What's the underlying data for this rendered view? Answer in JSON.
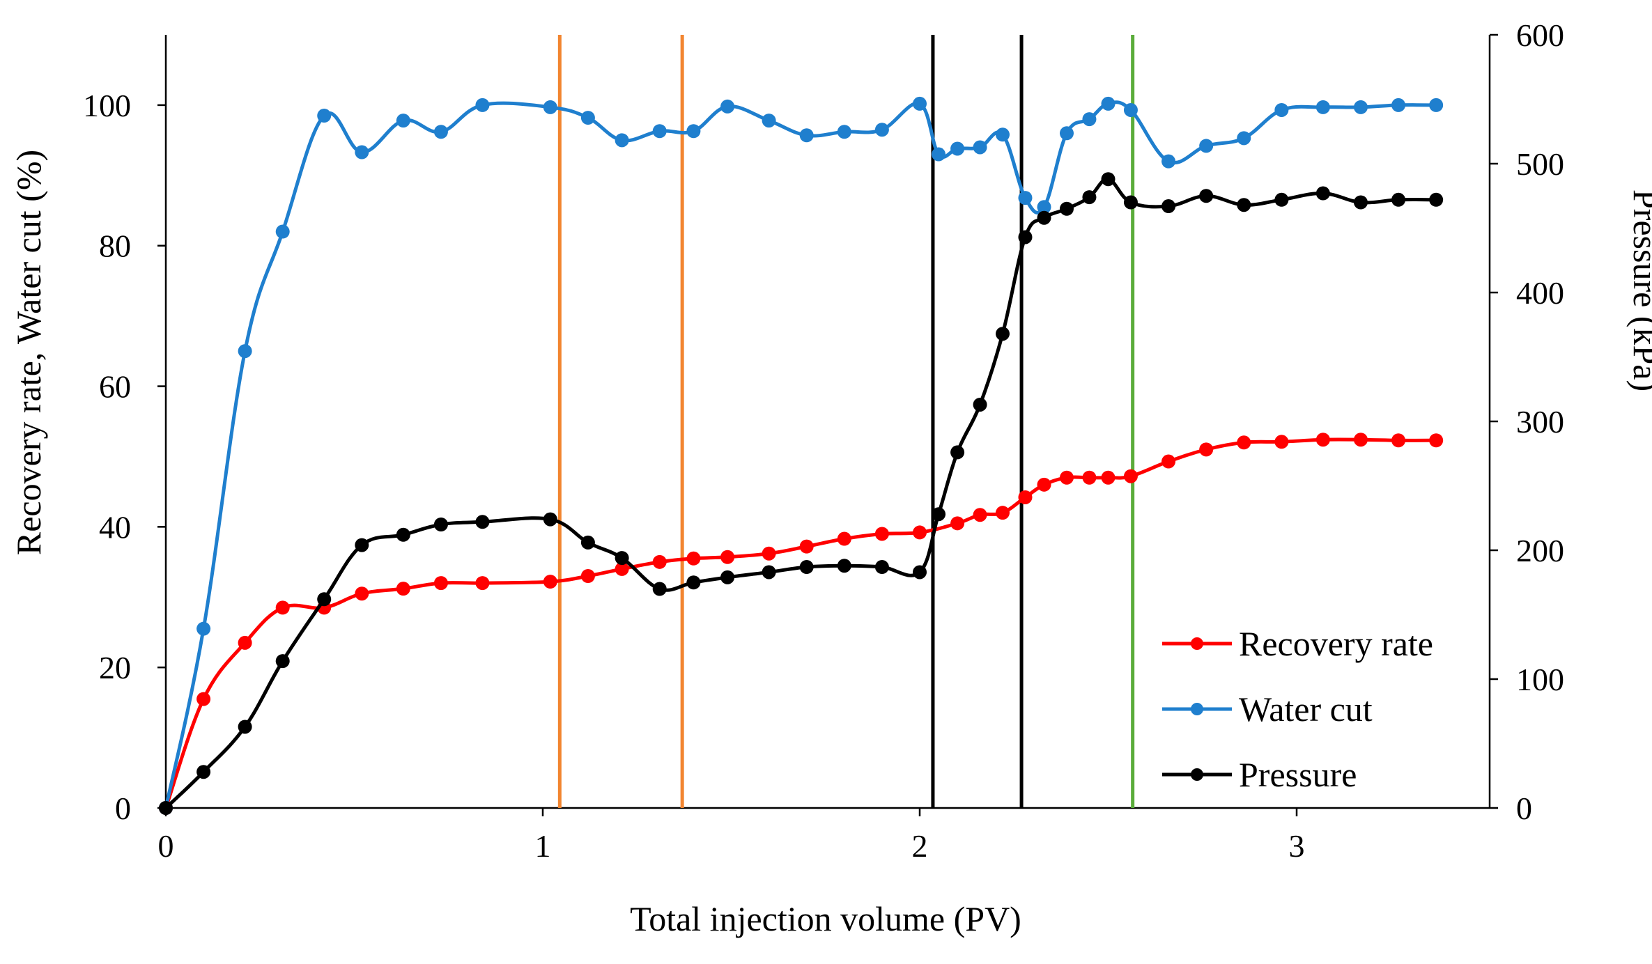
{
  "chart_data": {
    "type": "line",
    "title": "",
    "xlabel": "Total injection volume (PV)",
    "ylabel": "Recovery rate, Water cut (%)",
    "y2label": "Pressure (kPa)",
    "xlim": [
      0,
      3.5
    ],
    "ylim": [
      0,
      110
    ],
    "y2lim": [
      0,
      600
    ],
    "x_ticks": [
      "0",
      "1",
      "2",
      "3"
    ],
    "y_ticks": [
      "0",
      "20",
      "40",
      "60",
      "80",
      "100"
    ],
    "y2_ticks": [
      "0",
      "100",
      "200",
      "300",
      "400",
      "500",
      "600"
    ],
    "legend_position": "bottom-right",
    "series": [
      {
        "name": "Recovery rate",
        "axis": "left",
        "color": "#ff0000",
        "points": [
          [
            0,
            0
          ],
          [
            0.1,
            15.5
          ],
          [
            0.21,
            23.5
          ],
          [
            0.31,
            28.5
          ],
          [
            0.42,
            28.5
          ],
          [
            0.52,
            30.5
          ],
          [
            0.63,
            31.2
          ],
          [
            0.73,
            32
          ],
          [
            0.84,
            32
          ],
          [
            1.02,
            32.2
          ],
          [
            1.12,
            33
          ],
          [
            1.21,
            34
          ],
          [
            1.31,
            35
          ],
          [
            1.4,
            35.5
          ],
          [
            1.49,
            35.7
          ],
          [
            1.6,
            36.2
          ],
          [
            1.7,
            37.2
          ],
          [
            1.8,
            38.3
          ],
          [
            1.9,
            39
          ],
          [
            2.0,
            39.2
          ],
          [
            2.1,
            40.5
          ],
          [
            2.16,
            41.7
          ],
          [
            2.22,
            42
          ],
          [
            2.28,
            44.2
          ],
          [
            2.33,
            46
          ],
          [
            2.39,
            47
          ],
          [
            2.45,
            47
          ],
          [
            2.5,
            47
          ],
          [
            2.56,
            47.2
          ],
          [
            2.66,
            49.3
          ],
          [
            2.76,
            51
          ],
          [
            2.86,
            52
          ],
          [
            2.96,
            52.1
          ],
          [
            3.07,
            52.4
          ],
          [
            3.17,
            52.4
          ],
          [
            3.27,
            52.3
          ],
          [
            3.37,
            52.3
          ]
        ]
      },
      {
        "name": "Water cut",
        "axis": "left",
        "color": "#1f7fce",
        "points": [
          [
            0,
            0
          ],
          [
            0.1,
            25.5
          ],
          [
            0.21,
            65
          ],
          [
            0.31,
            82
          ],
          [
            0.42,
            98.5
          ],
          [
            0.52,
            93.3
          ],
          [
            0.63,
            97.8
          ],
          [
            0.73,
            96.2
          ],
          [
            0.84,
            100
          ],
          [
            1.02,
            99.7
          ],
          [
            1.12,
            98.2
          ],
          [
            1.21,
            95
          ],
          [
            1.31,
            96.3
          ],
          [
            1.4,
            96.3
          ],
          [
            1.49,
            99.8
          ],
          [
            1.6,
            97.8
          ],
          [
            1.7,
            95.7
          ],
          [
            1.8,
            96.2
          ],
          [
            1.9,
            96.5
          ],
          [
            2.0,
            100.2
          ],
          [
            2.05,
            93
          ],
          [
            2.1,
            93.8
          ],
          [
            2.16,
            94
          ],
          [
            2.22,
            95.8
          ],
          [
            2.28,
            86.8
          ],
          [
            2.33,
            85.5
          ],
          [
            2.39,
            96
          ],
          [
            2.45,
            98
          ],
          [
            2.5,
            100.2
          ],
          [
            2.56,
            99.3
          ],
          [
            2.66,
            92
          ],
          [
            2.76,
            94.2
          ],
          [
            2.86,
            95.3
          ],
          [
            2.96,
            99.3
          ],
          [
            3.07,
            99.7
          ],
          [
            3.17,
            99.7
          ],
          [
            3.27,
            100
          ],
          [
            3.37,
            100
          ]
        ]
      },
      {
        "name": "Pressure",
        "axis": "right",
        "color": "#000000",
        "points": [
          [
            0,
            0
          ],
          [
            0.1,
            28
          ],
          [
            0.21,
            63
          ],
          [
            0.31,
            114
          ],
          [
            0.42,
            162
          ],
          [
            0.52,
            204
          ],
          [
            0.63,
            212
          ],
          [
            0.73,
            220
          ],
          [
            0.84,
            222
          ],
          [
            1.02,
            224
          ],
          [
            1.12,
            206
          ],
          [
            1.21,
            194
          ],
          [
            1.31,
            170
          ],
          [
            1.4,
            175
          ],
          [
            1.49,
            179
          ],
          [
            1.6,
            183
          ],
          [
            1.7,
            187
          ],
          [
            1.8,
            188
          ],
          [
            1.9,
            187
          ],
          [
            2.0,
            183
          ],
          [
            2.05,
            228
          ],
          [
            2.1,
            276
          ],
          [
            2.16,
            313
          ],
          [
            2.22,
            368
          ],
          [
            2.28,
            443
          ],
          [
            2.33,
            458
          ],
          [
            2.39,
            465
          ],
          [
            2.45,
            474
          ],
          [
            2.5,
            488
          ],
          [
            2.56,
            470
          ],
          [
            2.66,
            467
          ],
          [
            2.76,
            475
          ],
          [
            2.86,
            468
          ],
          [
            2.96,
            472
          ],
          [
            3.07,
            477
          ],
          [
            3.17,
            470
          ],
          [
            3.27,
            472
          ],
          [
            3.37,
            472
          ]
        ]
      }
    ],
    "vertical_lines": [
      {
        "name": "orange-line-1",
        "x": 1.045,
        "color": "#f28530"
      },
      {
        "name": "orange-line-2",
        "x": 1.37,
        "color": "#f28530"
      },
      {
        "name": "black-line-1",
        "x": 2.035,
        "color": "#000000"
      },
      {
        "name": "black-line-2",
        "x": 2.27,
        "color": "#000000"
      },
      {
        "name": "green-line",
        "x": 2.565,
        "color": "#5aac3a"
      }
    ]
  }
}
